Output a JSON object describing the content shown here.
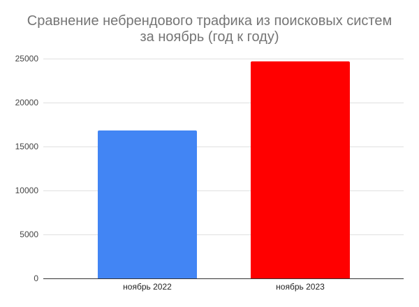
{
  "chart_data": {
    "type": "bar",
    "title": "Сравнение небрендового трафика из поисковых систем за ноябрь (год к году)",
    "title_lines": [
      "Сравнение небрендового трафика из поисковых систем",
      "за ноябрь (год к году)"
    ],
    "categories": [
      "ноябрь 2022",
      "ноябрь 2023"
    ],
    "values": [
      16800,
      24700
    ],
    "colors": [
      "#4285f4",
      "#ff0000"
    ],
    "xlabel": "",
    "ylabel": "",
    "ylim": [
      0,
      25000
    ],
    "yticks": [
      0,
      5000,
      10000,
      15000,
      20000,
      25000
    ],
    "ytick_labels": [
      "0",
      "5000",
      "10000",
      "15000",
      "20000",
      "25000"
    ],
    "grid": true,
    "legend": "none"
  }
}
